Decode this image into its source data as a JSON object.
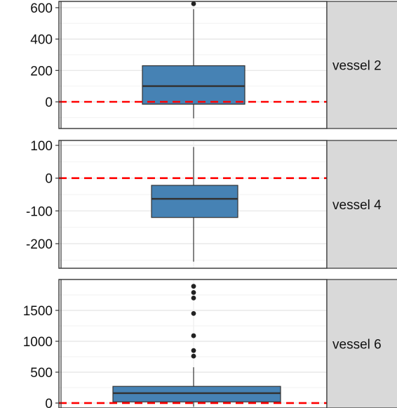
{
  "chart_data": {
    "type": "boxplot",
    "reference_line": {
      "y": 0,
      "color": "#ff0000",
      "style": "dashed"
    },
    "box_color": "#4682b4",
    "panel_strip_color": "#d9d9d9",
    "grid": true,
    "panels": [
      {
        "facet_label": "vessel 2",
        "ylim": [
          -170,
          640
        ],
        "yticks": [
          0,
          200,
          400,
          600
        ],
        "box": {
          "whisker_low": -105,
          "q1": -15,
          "median": 100,
          "q3": 230,
          "whisker_high": 590
        },
        "outliers": [
          625
        ]
      },
      {
        "facet_label": "vessel 4",
        "ylim": [
          -275,
          115
        ],
        "yticks": [
          -200,
          -100,
          0,
          100
        ],
        "box": {
          "whisker_low": -255,
          "q1": -120,
          "median": -63,
          "q3": -22,
          "whisker_high": 95
        },
        "outliers": []
      },
      {
        "facet_label": "vessel 6",
        "ylim": [
          -80,
          2000
        ],
        "yticks": [
          0,
          500,
          1000,
          1500
        ],
        "box": {
          "whisker_low": -60,
          "q1": 20,
          "median": 160,
          "q3": 270,
          "whisker_high": 580
        },
        "outliers": [
          760,
          850,
          1090,
          1450,
          1700,
          1790,
          1890
        ]
      }
    ]
  }
}
